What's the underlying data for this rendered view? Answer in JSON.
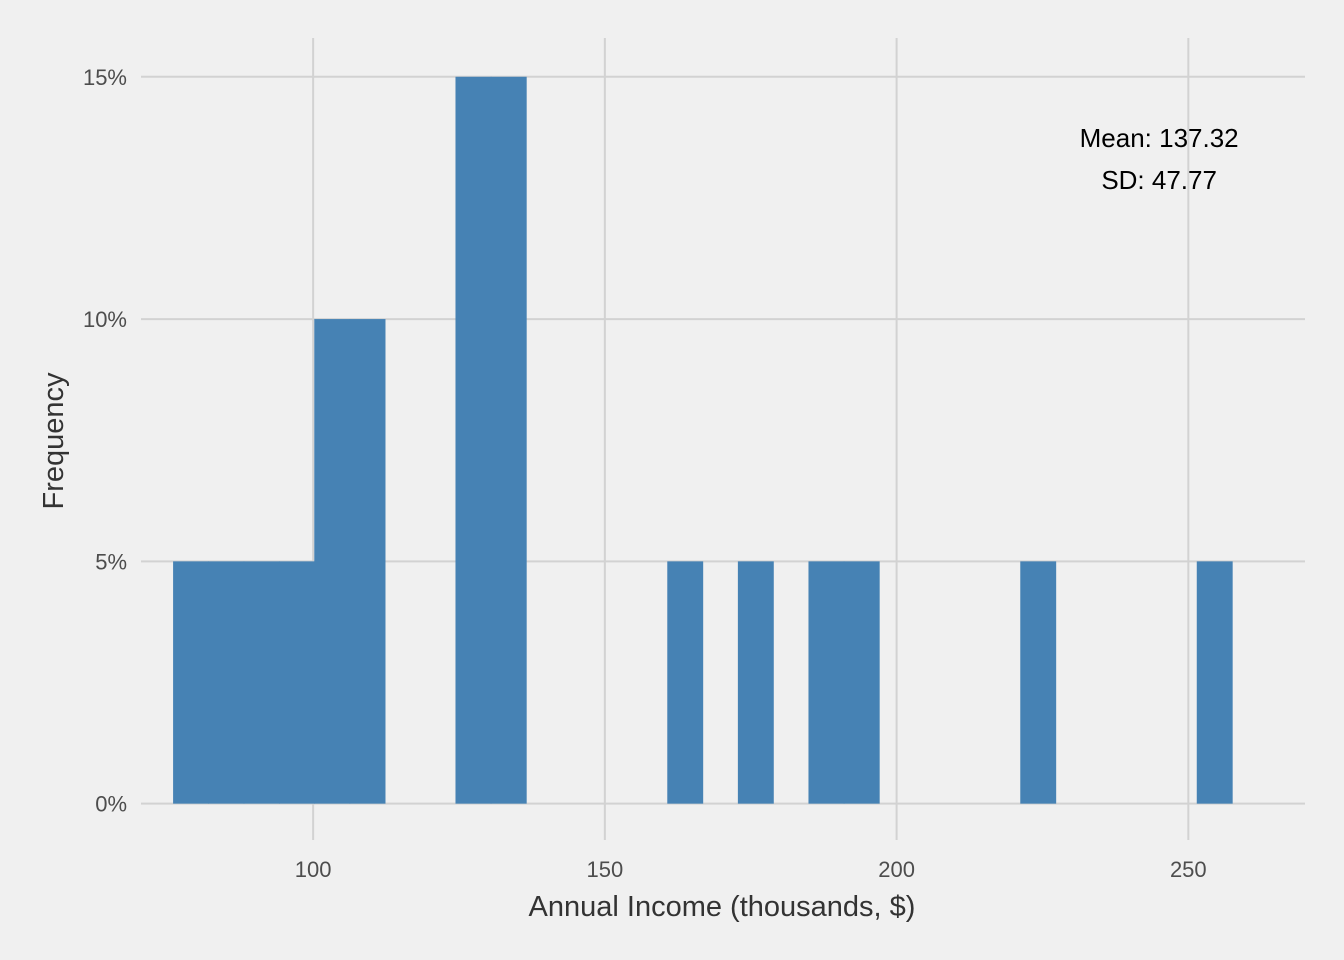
{
  "chart_data": {
    "type": "bar",
    "xlabel": "Annual Income (thousands, $)",
    "ylabel": "Frequency",
    "xlim": [
      70.5,
      270
    ],
    "ylim": [
      -0.75,
      15.8
    ],
    "x_ticks": [
      100,
      150,
      200,
      250
    ],
    "x_tick_labels": [
      "100",
      "150",
      "200",
      "250"
    ],
    "y_ticks": [
      0,
      5,
      10,
      15
    ],
    "y_tick_labels": [
      "0%",
      "5%",
      "10%",
      "15%"
    ],
    "bin_width": 6.05,
    "bins": [
      {
        "start": 76.0,
        "end": 82.05,
        "value": 5
      },
      {
        "start": 82.05,
        "end": 88.1,
        "value": 5
      },
      {
        "start": 88.1,
        "end": 94.15,
        "value": 5
      },
      {
        "start": 94.15,
        "end": 100.2,
        "value": 5
      },
      {
        "start": 100.2,
        "end": 106.25,
        "value": 10
      },
      {
        "start": 106.25,
        "end": 112.3,
        "value": 10
      },
      {
        "start": 124.4,
        "end": 130.45,
        "value": 15
      },
      {
        "start": 130.45,
        "end": 136.5,
        "value": 15
      },
      {
        "start": 160.7,
        "end": 166.75,
        "value": 5
      },
      {
        "start": 172.8,
        "end": 178.85,
        "value": 5
      },
      {
        "start": 184.9,
        "end": 190.95,
        "value": 5
      },
      {
        "start": 190.95,
        "end": 197.0,
        "value": 5
      },
      {
        "start": 221.2,
        "end": 227.25,
        "value": 5
      },
      {
        "start": 251.45,
        "end": 257.5,
        "value": 5
      }
    ],
    "annotation": {
      "mean_label": "Mean: 137.32",
      "sd_label": "SD: 47.77",
      "x": 245,
      "y": 13.3
    },
    "colors": {
      "bar": "#4682b4",
      "background": "#f0f0f0",
      "grid": "#d2d2d2"
    }
  }
}
